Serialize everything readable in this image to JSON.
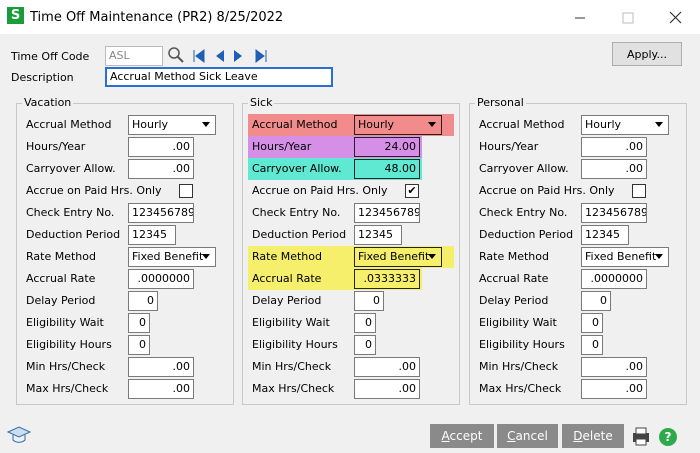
{
  "window": {
    "title": "Time Off Maintenance (PR2) 8/25/2022"
  },
  "header": {
    "code_label": "Time Off Code",
    "code_value": "ASL",
    "description_label": "Description",
    "description_value": "Accrual Method Sick Leave",
    "apply_button": "Apply..."
  },
  "panels": [
    {
      "title": "Vacation",
      "fields": [
        {
          "label": "Accrual Method",
          "value": "Hourly"
        },
        {
          "label": "Hours/Year",
          "value": ".00"
        },
        {
          "label": "Carryover Allow.",
          "value": ".00"
        },
        {
          "label": "Accrue on Paid Hrs. Only",
          "checked": false
        },
        {
          "label": "Check Entry No.",
          "value": "123456789"
        },
        {
          "label": "Deduction Period",
          "value": "12345"
        },
        {
          "label": "Rate Method",
          "value": "Fixed Benefit"
        },
        {
          "label": "Accrual Rate",
          "value": ".0000000"
        },
        {
          "label": "Delay Period",
          "value": "0"
        },
        {
          "label": "Eligibility Wait",
          "value": "0"
        },
        {
          "label": "Eligibility Hours",
          "value": "0"
        },
        {
          "label": "Min Hrs/Check",
          "value": ".00"
        },
        {
          "label": "Max Hrs/Check",
          "value": ".00"
        }
      ]
    },
    {
      "title": "Sick",
      "fields": [
        {
          "label": "Accrual Method",
          "value": "Hourly",
          "highlight": "#f28b8b"
        },
        {
          "label": "Hours/Year",
          "value": "24.00",
          "highlight": "#d68fe6"
        },
        {
          "label": "Carryover Allow.",
          "value": "48.00",
          "highlight": "#5fe8d2"
        },
        {
          "label": "Accrue on Paid Hrs. Only",
          "checked": true
        },
        {
          "label": "Check Entry No.",
          "value": "123456789"
        },
        {
          "label": "Deduction Period",
          "value": "12345"
        },
        {
          "label": "Rate Method",
          "value": "Fixed Benefit",
          "highlight": "#f5ef6b"
        },
        {
          "label": "Accrual Rate",
          "value": ".0333333",
          "highlight": "#f5ef6b"
        },
        {
          "label": "Delay Period",
          "value": "0"
        },
        {
          "label": "Eligibility Wait",
          "value": "0"
        },
        {
          "label": "Eligibility Hours",
          "value": "0"
        },
        {
          "label": "Min Hrs/Check",
          "value": ".00"
        },
        {
          "label": "Max Hrs/Check",
          "value": ".00"
        }
      ]
    },
    {
      "title": "Personal",
      "fields": [
        {
          "label": "Accrual Method",
          "value": "Hourly"
        },
        {
          "label": "Hours/Year",
          "value": ".00"
        },
        {
          "label": "Carryover Allow.",
          "value": ".00"
        },
        {
          "label": "Accrue on Paid Hrs. Only",
          "checked": false
        },
        {
          "label": "Check Entry No.",
          "value": "123456789"
        },
        {
          "label": "Deduction Period",
          "value": "12345"
        },
        {
          "label": "Rate Method",
          "value": "Fixed Benefit"
        },
        {
          "label": "Accrual Rate",
          "value": ".0000000"
        },
        {
          "label": "Delay Period",
          "value": "0"
        },
        {
          "label": "Eligibility Wait",
          "value": "0"
        },
        {
          "label": "Eligibility Hours",
          "value": "0"
        },
        {
          "label": "Min Hrs/Check",
          "value": ".00"
        },
        {
          "label": "Max Hrs/Check",
          "value": ".00"
        }
      ]
    }
  ],
  "buttons": [
    "Accept",
    "Cancel",
    "Delete"
  ]
}
